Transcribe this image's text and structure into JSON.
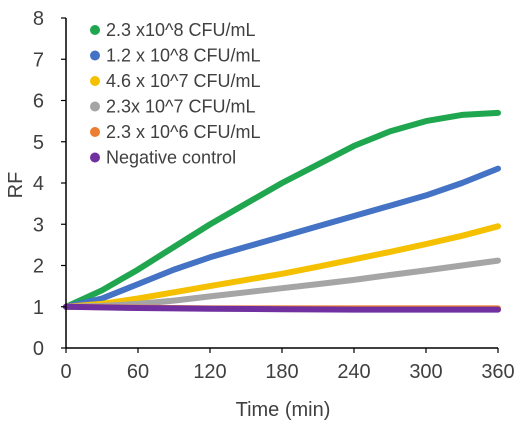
{
  "chart_data": {
    "type": "line",
    "title": "",
    "xlabel": "Time (min)",
    "ylabel": "RF",
    "xlim": [
      0,
      360
    ],
    "ylim": [
      0,
      8
    ],
    "xticks": [
      0,
      60,
      120,
      180,
      240,
      300,
      360
    ],
    "yticks": [
      0,
      1,
      2,
      3,
      4,
      5,
      6,
      7,
      8
    ],
    "grid": false,
    "legend_position": "top-left",
    "series": [
      {
        "name": "2.3 x10^8 CFU/mL",
        "color": "#1fa64f",
        "x": [
          0,
          30,
          60,
          90,
          120,
          150,
          180,
          210,
          240,
          270,
          300,
          330,
          360
        ],
        "y": [
          1.0,
          1.4,
          1.9,
          2.45,
          3.0,
          3.5,
          4.0,
          4.45,
          4.9,
          5.25,
          5.5,
          5.65,
          5.7
        ]
      },
      {
        "name": "1.2 x 10^8 CFU/mL",
        "color": "#4472c4",
        "x": [
          0,
          30,
          60,
          90,
          120,
          150,
          180,
          210,
          240,
          270,
          300,
          330,
          360
        ],
        "y": [
          1.0,
          1.2,
          1.55,
          1.9,
          2.2,
          2.45,
          2.7,
          2.95,
          3.2,
          3.45,
          3.7,
          4.0,
          4.35
        ]
      },
      {
        "name": "4.6 x 10^7 CFU/mL",
        "color": "#f5c000",
        "x": [
          0,
          30,
          60,
          90,
          120,
          150,
          180,
          210,
          240,
          270,
          300,
          330,
          360
        ],
        "y": [
          1.0,
          1.07,
          1.2,
          1.35,
          1.5,
          1.65,
          1.8,
          1.97,
          2.15,
          2.33,
          2.52,
          2.72,
          2.95
        ]
      },
      {
        "name": "2.3x 10^7 CFU/mL",
        "color": "#a5a5a5",
        "x": [
          0,
          30,
          60,
          90,
          120,
          150,
          180,
          210,
          240,
          270,
          300,
          330,
          360
        ],
        "y": [
          1.0,
          1.02,
          1.07,
          1.15,
          1.25,
          1.35,
          1.45,
          1.55,
          1.65,
          1.77,
          1.88,
          2.0,
          2.12
        ]
      },
      {
        "name": "2.3 x 10^6 CFU/mL",
        "color": "#ed7d31",
        "x": [
          0,
          60,
          120,
          180,
          240,
          300,
          360
        ],
        "y": [
          1.0,
          0.98,
          0.96,
          0.96,
          0.96,
          0.96,
          0.96
        ]
      },
      {
        "name": "Negative control",
        "color": "#7030a0",
        "x": [
          0,
          60,
          120,
          180,
          240,
          300,
          360
        ],
        "y": [
          1.0,
          0.97,
          0.95,
          0.94,
          0.93,
          0.93,
          0.93
        ]
      }
    ]
  }
}
